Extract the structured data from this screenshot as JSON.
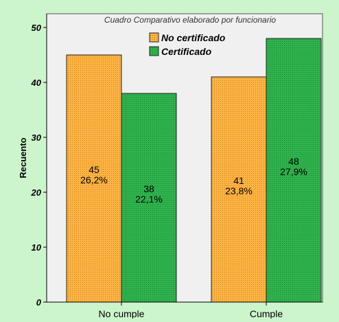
{
  "chart_data": {
    "type": "bar",
    "title": "Cuadro Comparativo elaborado por funcionario",
    "xlabel": "",
    "ylabel": "Recuento",
    "categories": [
      "No cumple",
      "Cumple"
    ],
    "ylim": [
      0,
      50
    ],
    "yticks": [
      0,
      10,
      20,
      30,
      40,
      50
    ],
    "grid": false,
    "legend_position": "top-center",
    "series": [
      {
        "name": "No certificado",
        "color": "#ffb340",
        "values": [
          45,
          41
        ],
        "labels": [
          [
            "45",
            "26,2%"
          ],
          [
            "41",
            "23,8%"
          ]
        ]
      },
      {
        "name": "Certificado",
        "color": "#2eb34d",
        "values": [
          38,
          48
        ],
        "labels": [
          [
            "38",
            "22,1%"
          ],
          [
            "48",
            "27,9%"
          ]
        ]
      }
    ]
  }
}
